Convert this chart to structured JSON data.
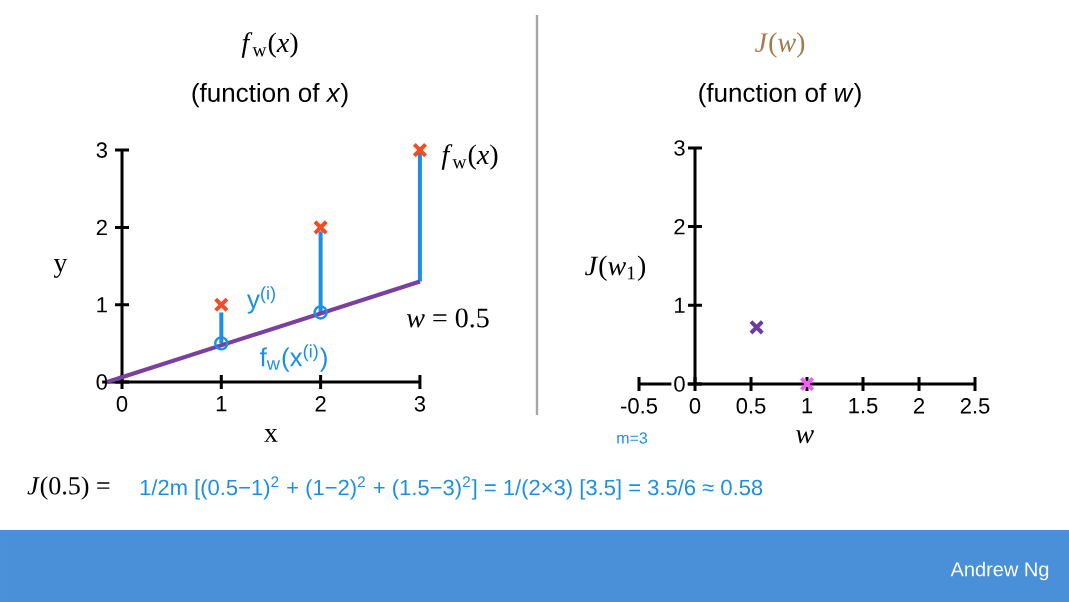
{
  "chart_data": [
    {
      "type": "scatter",
      "title": "*f*$_{w}$(*x*)",
      "subtitle": "(function of *x*)",
      "xlabel": "x",
      "ylabel": "y",
      "xlim": [
        -0.2,
        3
      ],
      "ylim": [
        0,
        3
      ],
      "xticks": [
        0,
        1,
        2,
        3
      ],
      "yticks": [
        0,
        1,
        2,
        3
      ],
      "series": [
        {
          "type": "line",
          "color": "#1a8fe3",
          "x": [
            1,
            1
          ],
          "values": [
            0.5,
            0.9
          ]
        },
        {
          "type": "line",
          "color": "#1a8fe3",
          "x": [
            2,
            2
          ],
          "values": [
            0.9,
            1.95
          ]
        },
        {
          "type": "line",
          "color": "#1a8fe3",
          "x": [
            3,
            3
          ],
          "values": [
            1.3,
            3
          ]
        },
        {
          "type": "line",
          "color": "#7b3fa0",
          "marker": "none",
          "x": [
            -0.15,
            3
          ],
          "values": [
            0,
            1.3
          ]
        },
        {
          "color": "#1a8fe3",
          "marker": "circle",
          "x": [
            1,
            2
          ],
          "values": [
            0.5,
            0.9
          ]
        },
        {
          "color": "#f04e23",
          "marker": "cross",
          "x": [
            1,
            2,
            3
          ],
          "values": [
            1,
            2,
            3
          ]
        }
      ],
      "annotations": [
        "*f*$_{w}$(*x*)",
        "y$^{(i)}$",
        "f$_{w}$(x$^{(i)}$)",
        "*w* = 0.5",
        "*J*(0.5) =",
        "1/2m [(0.5−1)$^{2}$ + (1−2)$^{2}$ + (1.5−3)$^{2}$] = 1/(2×3) [3.5] = 3.5/6 ≈ 0.58",
        "m=3"
      ]
    },
    {
      "type": "scatter",
      "title": "*J*(*w*)",
      "subtitle": "(function of *w*)",
      "xlabel": "*w*",
      "ylabel": "*J*(*w*$_{1}$)",
      "xlim": [
        -0.5,
        2.5
      ],
      "ylim": [
        0,
        3
      ],
      "xticks": [
        -0.5,
        0,
        0.5,
        1,
        1.5,
        2,
        2.5
      ],
      "yticks": [
        0,
        1,
        2,
        3
      ],
      "series": [
        {
          "color": "#6a3d9a",
          "marker": "cross",
          "x": [
            0.55
          ],
          "values": [
            0.72
          ]
        },
        {
          "color": "#f060f0",
          "marker": "cross",
          "x": [
            1
          ],
          "values": [
            0
          ]
        }
      ],
      "annotations": [
        "Andrew Ng"
      ]
    }
  ]
}
